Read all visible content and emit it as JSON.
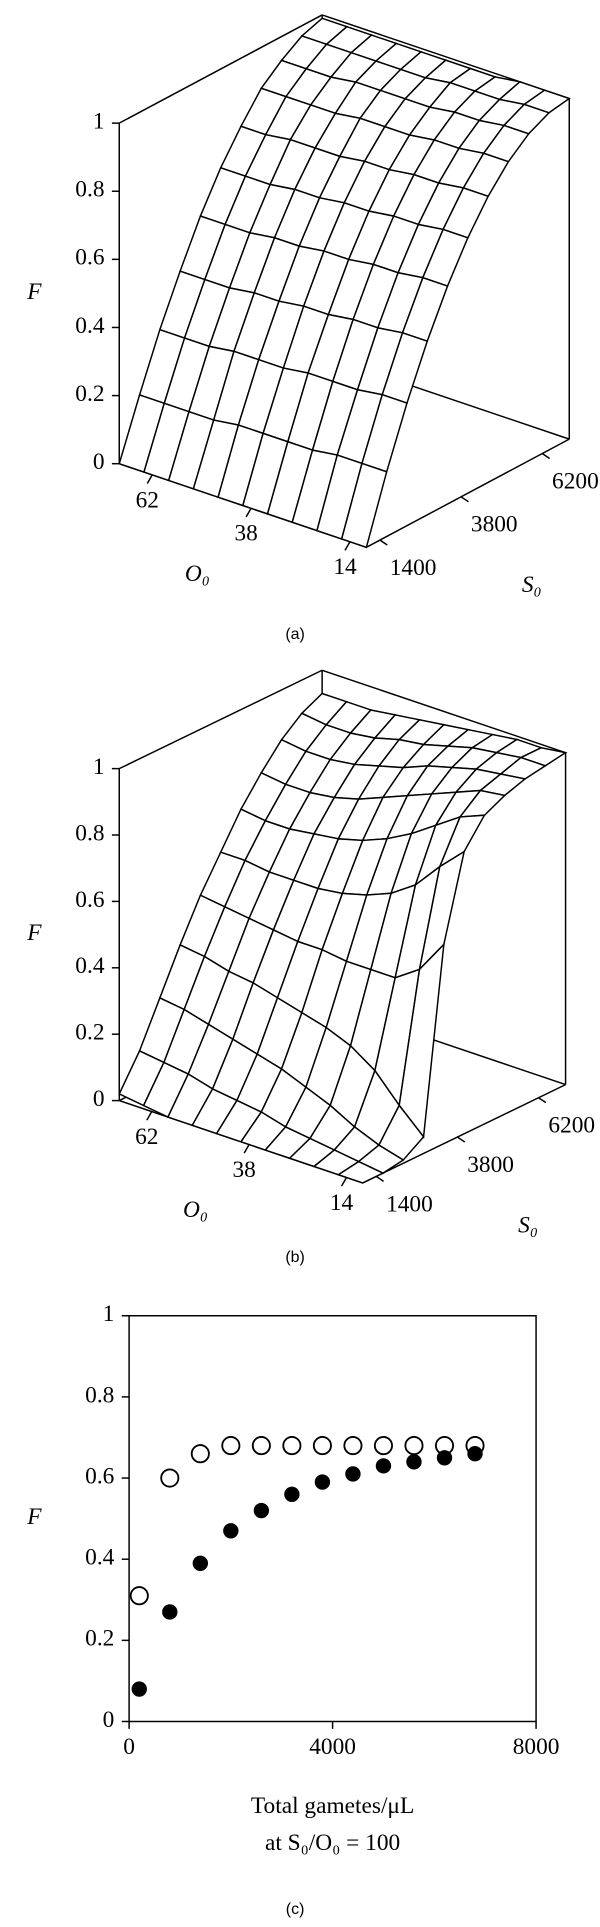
{
  "chart_data": [
    {
      "type": "surface",
      "caption": "(a)",
      "xlabel": "O₀",
      "ylabel": "S₀",
      "zlabel": "F",
      "x": [
        10,
        16,
        22,
        28,
        34,
        40,
        46,
        52,
        58,
        64,
        70
      ],
      "y": [
        1000,
        1600,
        2200,
        2800,
        3400,
        4000,
        4600,
        5200,
        5800,
        6400,
        7000
      ],
      "z": [
        [
          0,
          0.19,
          0.36,
          0.51,
          0.64,
          0.75,
          0.84,
          0.91,
          0.96,
          0.99,
          1.0
        ],
        [
          0,
          0.19,
          0.36,
          0.51,
          0.64,
          0.75,
          0.84,
          0.91,
          0.96,
          0.99,
          1.0
        ],
        [
          0,
          0.19,
          0.35,
          0.5,
          0.63,
          0.74,
          0.83,
          0.9,
          0.95,
          0.98,
          1.0
        ],
        [
          0,
          0.18,
          0.35,
          0.5,
          0.63,
          0.74,
          0.83,
          0.9,
          0.95,
          0.98,
          0.99
        ],
        [
          0,
          0.18,
          0.35,
          0.49,
          0.62,
          0.73,
          0.82,
          0.89,
          0.94,
          0.98,
          0.99
        ],
        [
          0,
          0.18,
          0.34,
          0.49,
          0.62,
          0.73,
          0.82,
          0.89,
          0.94,
          0.97,
          0.99
        ],
        [
          0,
          0.18,
          0.34,
          0.48,
          0.61,
          0.72,
          0.81,
          0.89,
          0.94,
          0.97,
          0.99
        ],
        [
          0,
          0.17,
          0.34,
          0.48,
          0.61,
          0.72,
          0.81,
          0.88,
          0.94,
          0.97,
          0.99
        ],
        [
          0,
          0.17,
          0.33,
          0.47,
          0.6,
          0.71,
          0.81,
          0.88,
          0.93,
          0.97,
          0.99
        ],
        [
          0,
          0.17,
          0.33,
          0.47,
          0.6,
          0.71,
          0.8,
          0.88,
          0.93,
          0.97,
          0.99
        ],
        [
          0,
          0.17,
          0.33,
          0.47,
          0.6,
          0.71,
          0.8,
          0.88,
          0.93,
          0.97,
          0.99
        ]
      ],
      "xlim": [
        10,
        70
      ],
      "ylim": [
        1000,
        7000
      ],
      "zlim": [
        0,
        1
      ],
      "xticks": [
        14,
        38,
        62
      ],
      "yticks": [
        1400,
        3800,
        6200
      ],
      "zticks": [
        0,
        0.2,
        0.4,
        0.6,
        0.8,
        1
      ]
    },
    {
      "type": "surface",
      "caption": "(b)",
      "xlabel": "O₀",
      "ylabel": "S₀",
      "zlabel": "F",
      "x": [
        10,
        16,
        22,
        28,
        34,
        40,
        46,
        52,
        58,
        64,
        70
      ],
      "y": [
        1000,
        1600,
        2200,
        2800,
        3400,
        4000,
        4600,
        5200,
        5800,
        6400,
        7000
      ],
      "z": [
        [
          0,
          0,
          0.01,
          0.05,
          0.6,
          0.85,
          0.93,
          0.96,
          0.98,
          0.99,
          1.0
        ],
        [
          0,
          0.01,
          0.03,
          0.12,
          0.5,
          0.78,
          0.9,
          0.95,
          0.97,
          0.99,
          0.99
        ],
        [
          0,
          0.02,
          0.06,
          0.2,
          0.45,
          0.7,
          0.85,
          0.92,
          0.96,
          0.98,
          0.99
        ],
        [
          0,
          0.03,
          0.1,
          0.25,
          0.45,
          0.65,
          0.8,
          0.89,
          0.94,
          0.97,
          0.98
        ],
        [
          0,
          0.04,
          0.13,
          0.28,
          0.45,
          0.62,
          0.76,
          0.86,
          0.92,
          0.95,
          0.97
        ],
        [
          0,
          0.06,
          0.16,
          0.3,
          0.46,
          0.6,
          0.73,
          0.83,
          0.89,
          0.93,
          0.96
        ],
        [
          0,
          0.07,
          0.18,
          0.32,
          0.46,
          0.59,
          0.71,
          0.8,
          0.87,
          0.92,
          0.95
        ],
        [
          0,
          0.08,
          0.2,
          0.34,
          0.47,
          0.59,
          0.7,
          0.78,
          0.85,
          0.9,
          0.94
        ],
        [
          0,
          0.1,
          0.22,
          0.35,
          0.48,
          0.59,
          0.69,
          0.77,
          0.84,
          0.89,
          0.93
        ],
        [
          0.01,
          0.11,
          0.24,
          0.37,
          0.49,
          0.6,
          0.69,
          0.77,
          0.84,
          0.89,
          0.93
        ],
        [
          0.02,
          0.12,
          0.25,
          0.38,
          0.5,
          0.6,
          0.7,
          0.78,
          0.85,
          0.9,
          0.93
        ]
      ],
      "xlim": [
        10,
        70
      ],
      "ylim": [
        1000,
        7000
      ],
      "zlim": [
        0,
        1
      ],
      "xticks": [
        14,
        38,
        62
      ],
      "yticks": [
        1400,
        3800,
        6200
      ],
      "zticks": [
        0,
        0.2,
        0.4,
        0.6,
        0.8,
        1
      ]
    },
    {
      "type": "scatter",
      "caption": "(c)",
      "xlabel": [
        "Total gametes/μL",
        "at S₀/O₀ = 100"
      ],
      "ylabel": "F",
      "x": [
        200,
        800,
        1400,
        2000,
        2600,
        3200,
        3800,
        4400,
        5000,
        5600,
        6200,
        6800
      ],
      "series": [
        {
          "color": "#000000",
          "fill": "none",
          "values": [
            0.31,
            0.6,
            0.66,
            0.68,
            0.68,
            0.68,
            0.68,
            0.68,
            0.68,
            0.68,
            0.68,
            0.68
          ]
        },
        {
          "color": "#000000",
          "fill": "#000000",
          "values": [
            0.08,
            0.27,
            0.39,
            0.47,
            0.52,
            0.56,
            0.59,
            0.61,
            0.63,
            0.64,
            0.65,
            0.66
          ]
        }
      ],
      "xlim": [
        0,
        8000
      ],
      "ylim": [
        0,
        1
      ],
      "xticks": [
        0,
        4000,
        8000
      ],
      "yticks": [
        0,
        0.2,
        0.4,
        0.6,
        0.8,
        1
      ]
    }
  ]
}
